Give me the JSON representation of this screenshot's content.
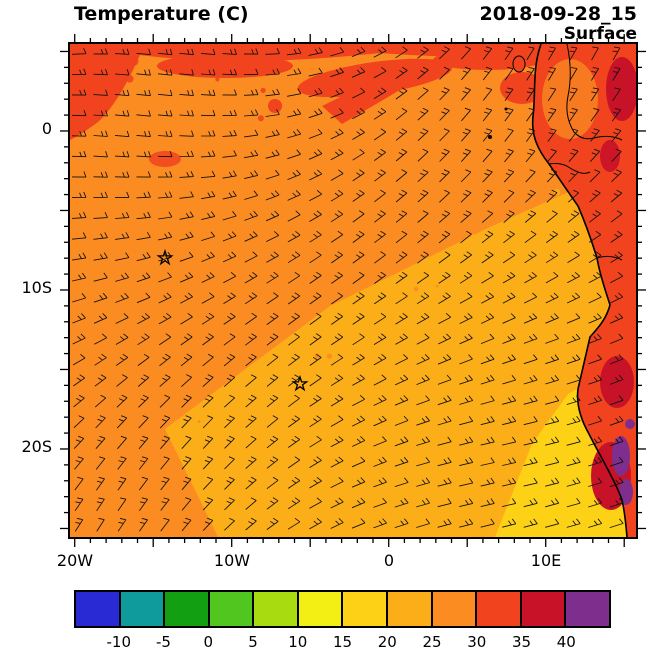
{
  "header": {
    "title": "Temperature (C)",
    "datetime": "2018-09-28_15",
    "level": "Surface"
  },
  "chart_data": {
    "type": "heatmap",
    "title": "Temperature (C)",
    "valid_time": "2018-09-28_15",
    "level": "Surface",
    "units": "C",
    "x_axis": {
      "tick_labels": [
        "20W",
        "10W",
        "0",
        "10E"
      ],
      "lon_range": [
        -20.3,
        15.8
      ],
      "minor_tick_deg": 1,
      "major_tick_deg": 5
    },
    "y_axis": {
      "tick_labels": [
        "0",
        "10S",
        "20S"
      ],
      "lat_range": [
        5.5,
        -25.7
      ],
      "minor_tick_deg": 1,
      "major_tick_deg": 5
    },
    "colorbar": {
      "boundary_labels": [
        "-10",
        "-5",
        "0",
        "5",
        "10",
        "15",
        "20",
        "25",
        "30",
        "35",
        "40"
      ],
      "colors": [
        "#2a2ad4",
        "#0f9b9b",
        "#12a012",
        "#50c61e",
        "#a8dc10",
        "#f3ee14",
        "#fcd116",
        "#fcae19",
        "#fa8c22",
        "#f0431e",
        "#c81228",
        "#7e2f8e"
      ]
    },
    "palette": {
      "orange": "#fa8c22",
      "gold": "#fcae19",
      "yellow": "#fcd116",
      "red": "#f0431e",
      "darkred": "#c81228",
      "purple": "#7e2f8e"
    },
    "field_regions": [
      {
        "area": "northern / northwestern ocean and top of domain",
        "temp_c": "25-30"
      },
      {
        "area": "central ocean band (diagonal wedge)",
        "temp_c": "20-25"
      },
      {
        "area": "southeastern coastal ocean strip",
        "temp_c": "15-20"
      },
      {
        "area": "warm patches along top edge and top-left corner",
        "temp_c": "30-35"
      },
      {
        "area": "African land along right edge",
        "temp_c": "30-40"
      },
      {
        "area": "hot spots inland, lower right coast",
        "temp_c": ">40"
      }
    ],
    "markers": [
      {
        "symbol": "star",
        "lon": -14.3,
        "lat": -8.1
      },
      {
        "symbol": "star",
        "lon": -5.9,
        "lat": -16.0
      }
    ],
    "overlay": "surface wind barbs, southeasterly trade flow"
  }
}
